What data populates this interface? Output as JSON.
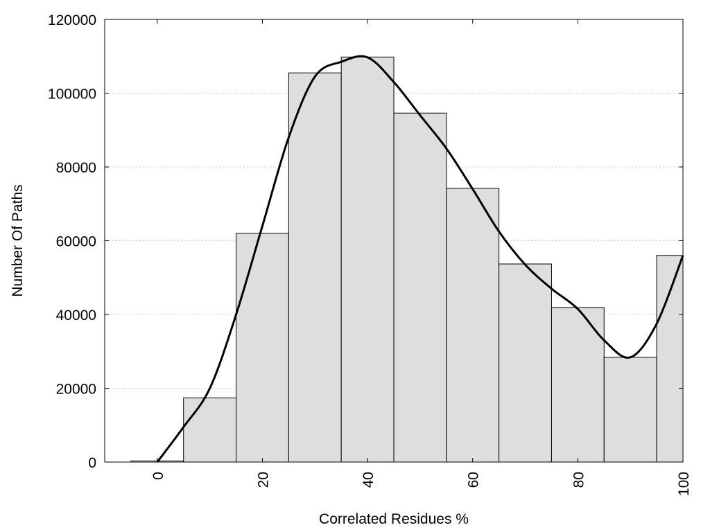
{
  "chart_data": {
    "type": "bar",
    "title": "",
    "xlabel": "Correlated Residues %",
    "ylabel": "Number Of Paths",
    "xlim": [
      -10,
      100
    ],
    "ylim": [
      0,
      120000
    ],
    "x_ticks": [
      0,
      20,
      40,
      60,
      80,
      100
    ],
    "y_ticks": [
      0,
      20000,
      40000,
      60000,
      80000,
      100000,
      120000
    ],
    "grid": "horizontal dotted",
    "bin_width": 10,
    "bar_color": "#dedede",
    "bars": [
      {
        "x": 0,
        "value": 300
      },
      {
        "x": 10,
        "value": 17400
      },
      {
        "x": 20,
        "value": 62000
      },
      {
        "x": 30,
        "value": 105500
      },
      {
        "x": 40,
        "value": 109800
      },
      {
        "x": 50,
        "value": 94600
      },
      {
        "x": 60,
        "value": 74200
      },
      {
        "x": 70,
        "value": 53700
      },
      {
        "x": 80,
        "value": 41900
      },
      {
        "x": 90,
        "value": 28400
      },
      {
        "x": 100,
        "value": 56000
      }
    ],
    "line_series": {
      "x": [
        0,
        5,
        10,
        15,
        20,
        25,
        30,
        35,
        40,
        45,
        50,
        55,
        60,
        65,
        70,
        75,
        80,
        85,
        90,
        95,
        100
      ],
      "values": [
        0,
        9500,
        20000,
        40000,
        64000,
        88000,
        104500,
        108500,
        109700,
        103000,
        94000,
        85000,
        74000,
        62500,
        53500,
        47000,
        41500,
        33000,
        28400,
        37500,
        56000
      ]
    }
  }
}
